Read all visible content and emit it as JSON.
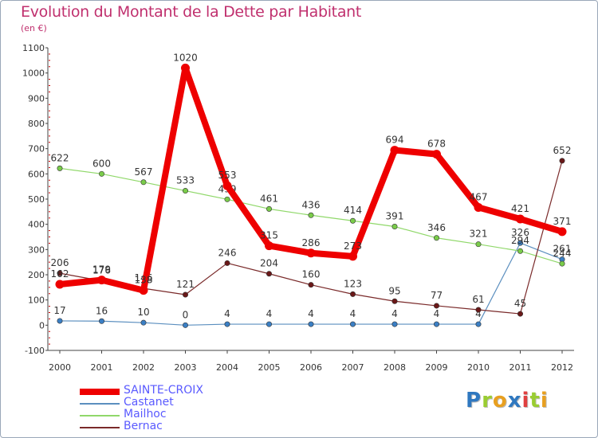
{
  "chart_data": {
    "type": "line",
    "title": "Evolution du Montant de la Dette par Habitant",
    "subtitle": "(en €)",
    "xlabel": "",
    "ylabel": "",
    "categories": [
      "2000",
      "2001",
      "2002",
      "2003",
      "2004",
      "2005",
      "2006",
      "2007",
      "2008",
      "2009",
      "2010",
      "2011",
      "2012"
    ],
    "ylim": [
      -100,
      1100
    ],
    "yticks": [
      -100,
      0,
      100,
      200,
      300,
      400,
      500,
      600,
      700,
      800,
      900,
      1000,
      1100
    ],
    "ytick_labels": [
      "-100",
      "0",
      "100",
      "200",
      "300",
      "400",
      "500",
      "600",
      "700",
      "800",
      "900",
      "1000",
      "1100"
    ],
    "grid": false,
    "legend_position": "bottom-left",
    "series": [
      {
        "name": "Castanet",
        "color": "#5b8fbf",
        "marker": "#3b7fc4",
        "width": 1.2,
        "values": [
          17,
          16,
          10,
          0,
          4,
          4,
          4,
          4,
          4,
          4,
          4,
          326,
          261
        ],
        "labels": [
          "17",
          "16",
          "10",
          "0",
          "4",
          "4",
          "4",
          "4",
          "4",
          "4",
          "4",
          "326",
          "261"
        ]
      },
      {
        "name": "Mailhoc",
        "color": "#90d86a",
        "marker": "#7acc4a",
        "width": 1.2,
        "values": [
          622,
          600,
          567,
          533,
          499,
          461,
          436,
          414,
          391,
          346,
          321,
          294,
          244
        ],
        "labels": [
          "622",
          "600",
          "567",
          "533",
          "499",
          "461",
          "436",
          "414",
          "391",
          "346",
          "321",
          "294",
          "244"
        ]
      },
      {
        "name": "Bernac",
        "color": "#7a2a2a",
        "marker": "#6a1818",
        "width": 1.2,
        "values": [
          206,
          176,
          146,
          121,
          246,
          204,
          160,
          123,
          95,
          77,
          61,
          45,
          652
        ],
        "labels": [
          "206",
          "176",
          "146",
          "121",
          "246",
          "204",
          "160",
          "123",
          "95",
          "77",
          "61",
          "45",
          "652"
        ]
      },
      {
        "name": "SAINTE-CROIX",
        "color": "#ee0000",
        "marker": "#ee0000",
        "width": 8,
        "values": [
          162,
          179,
          138,
          1020,
          553,
          315,
          286,
          273,
          694,
          678,
          467,
          421,
          371
        ],
        "labels": [
          "162",
          "179",
          "138",
          "1020",
          "553",
          "315",
          "286",
          "273",
          "694",
          "678",
          "467",
          "421",
          "371"
        ]
      }
    ],
    "legend_order": [
      "SAINTE-CROIX",
      "Castanet",
      "Mailhoc",
      "Bernac"
    ],
    "legend_label_color": "#5a5aff"
  },
  "logo": {
    "letters": [
      "P",
      "r",
      "o",
      "x",
      "i",
      "t",
      "i"
    ],
    "colors": [
      "#2f78c0",
      "#9acd32",
      "#e8a020",
      "#2f78c0",
      "#e04040",
      "#9acd32",
      "#e8a020"
    ]
  }
}
